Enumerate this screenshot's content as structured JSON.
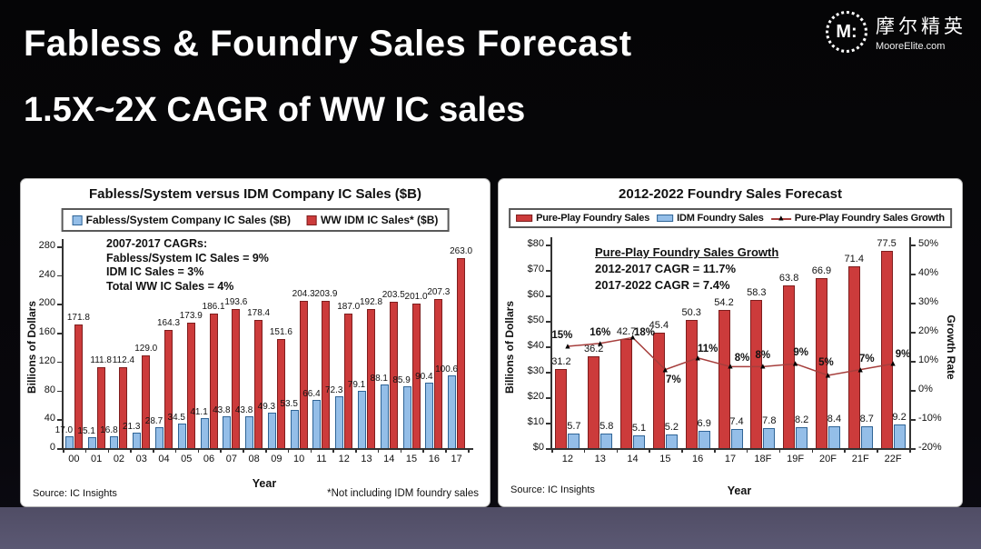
{
  "header": {
    "title_line1": "Fabless & Foundry Sales Forecast",
    "title_line2": "1.5X~2X CAGR of WW IC sales",
    "logo": {
      "monogram": "M:",
      "name_cn": "摩尔精英",
      "name_en": "MooreElite.com"
    }
  },
  "colors": {
    "red_bar": "#CC3B3B",
    "red_bar_border": "#7E1E1E",
    "blue_bar": "#94BEE8",
    "blue_bar_border": "#2F6496",
    "growth_line": "#A63E3C",
    "growth_marker": "#000000",
    "panel_bg": "#FFFFFF",
    "slide_bg": "#050506",
    "bottom_strip": "#5b5873"
  },
  "chart_data": [
    {
      "type": "bar",
      "title": "Fabless/System versus IDM Company IC Sales ($B)",
      "xlabel": "Year",
      "ylabel": "Billions of Dollars",
      "ylim": [
        0,
        280
      ],
      "yticks": [
        "0",
        "40",
        "80",
        "120",
        "160",
        "200",
        "240",
        "280"
      ],
      "grid": false,
      "legend_position": "top",
      "categories": [
        "00",
        "01",
        "02",
        "03",
        "04",
        "05",
        "06",
        "07",
        "08",
        "09",
        "10",
        "11",
        "12",
        "13",
        "14",
        "15",
        "16",
        "17"
      ],
      "series": [
        {
          "name": "Fabless/System Company IC Sales ($B)",
          "color": "#94BEE8",
          "values": [
            17.0,
            15.1,
            16.8,
            21.3,
            28.7,
            34.5,
            41.1,
            43.8,
            43.8,
            49.3,
            53.5,
            66.4,
            72.3,
            79.1,
            88.1,
            85.9,
            90.4,
            100.6
          ]
        },
        {
          "name": "WW IDM IC Sales* ($B)",
          "color": "#CC3B3B",
          "values": [
            171.8,
            111.8,
            112.4,
            129.0,
            164.3,
            173.9,
            186.1,
            193.6,
            178.4,
            151.6,
            204.3,
            203.9,
            187.0,
            192.8,
            203.5,
            201.0,
            207.3,
            263.0
          ]
        }
      ],
      "annotation": [
        "2007-2017 CAGRs:",
        "Fabless/System IC Sales = 9%",
        "IDM IC Sales = 3%",
        "Total WW IC Sales = 4%"
      ],
      "source": "Source: IC Insights",
      "footnote": "*Not including IDM foundry sales"
    },
    {
      "type": "bar+line",
      "title": "2012-2022 Foundry Sales Forecast",
      "xlabel": "Year",
      "ylabel_left": "Billions of Dollars",
      "ylabel_right": "Growth Rate",
      "ylim_left": [
        0,
        80
      ],
      "yticks_left": [
        "$0",
        "$10",
        "$20",
        "$30",
        "$40",
        "$50",
        "$60",
        "$70",
        "$80"
      ],
      "ylim_right": [
        -20,
        50
      ],
      "yticks_right": [
        "-20%",
        "-10%",
        "0%",
        "10%",
        "20%",
        "30%",
        "40%",
        "50%"
      ],
      "grid": false,
      "legend_position": "top",
      "categories": [
        "12",
        "13",
        "14",
        "15",
        "16",
        "17",
        "18F",
        "19F",
        "20F",
        "21F",
        "22F"
      ],
      "series": [
        {
          "name": "Pure-Play Foundry Sales",
          "type": "bar",
          "color": "#CC3B3B",
          "values": [
            31.2,
            36.2,
            42.7,
            45.4,
            50.3,
            54.2,
            58.3,
            63.8,
            66.9,
            71.4,
            77.5
          ]
        },
        {
          "name": "IDM Foundry Sales",
          "type": "bar",
          "color": "#94BEE8",
          "values": [
            5.7,
            5.8,
            5.1,
            5.2,
            6.9,
            7.4,
            7.8,
            8.2,
            8.4,
            8.7,
            9.2
          ]
        },
        {
          "name": "Pure-Play Foundry Sales Growth",
          "type": "line",
          "color": "#A63E3C",
          "values_pct": [
            15,
            16,
            18,
            7,
            11,
            8,
            8,
            9,
            5,
            7,
            9
          ],
          "labels": [
            "15%",
            "16%",
            "18%",
            "7%",
            "11%",
            "8%",
            "8%",
            "9%",
            "5%",
            "7%",
            "9%"
          ]
        }
      ],
      "annotation": [
        "Pure-Play Foundry Sales Growth",
        "2012-2017 CAGR = 11.7%",
        "2017-2022 CAGR = 7.4%"
      ],
      "source": "Source: IC Insights"
    }
  ]
}
